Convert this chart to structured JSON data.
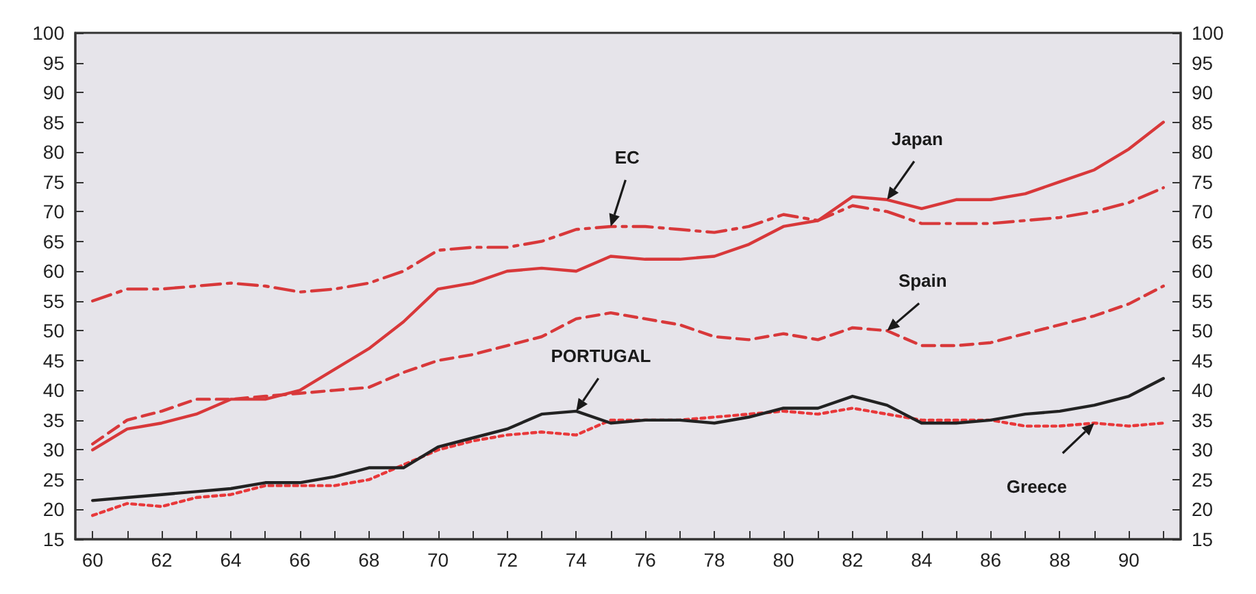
{
  "chart_data": {
    "type": "line",
    "x": [
      60,
      61,
      62,
      63,
      64,
      65,
      66,
      67,
      68,
      69,
      70,
      71,
      72,
      73,
      74,
      75,
      76,
      77,
      78,
      79,
      80,
      81,
      82,
      83,
      84,
      85,
      86,
      87,
      88,
      89,
      90,
      91
    ],
    "series": [
      {
        "name": "EC",
        "color": "#d8383a",
        "line_style": "dashdot",
        "values": [
          55,
          57,
          57,
          57.5,
          58,
          57.5,
          56.5,
          57,
          58,
          60,
          63.5,
          64,
          64,
          65,
          67,
          67.5,
          67.5,
          67,
          66.5,
          67.5,
          69.5,
          68.5,
          71,
          70,
          68,
          68,
          68,
          68.5,
          69,
          70,
          71.5,
          74
        ]
      },
      {
        "name": "Japan",
        "color": "#d8383a",
        "line_style": "solid",
        "values": [
          30,
          33.5,
          34.5,
          36,
          38.5,
          38.5,
          40,
          43.5,
          47,
          51.5,
          57,
          58,
          60,
          60.5,
          60,
          62.5,
          62,
          62,
          62.5,
          64.5,
          67.5,
          68.5,
          72.5,
          72,
          70.5,
          72,
          72,
          73,
          75,
          77,
          80.5,
          85
        ]
      },
      {
        "name": "Spain",
        "color": "#d8383a",
        "line_style": "dashed",
        "values": [
          31,
          35,
          36.5,
          38.5,
          38.5,
          39,
          39.5,
          40,
          40.5,
          43,
          45,
          46,
          47.5,
          49,
          52,
          53,
          52,
          51,
          49,
          48.5,
          49.5,
          48.5,
          50.5,
          50,
          47.5,
          47.5,
          48,
          49.5,
          51,
          52.5,
          54.5,
          57.5
        ]
      },
      {
        "name": "PORTUGAL",
        "color": "#222222",
        "line_style": "solid",
        "values": [
          21.5,
          22,
          22.5,
          23,
          23.5,
          24.5,
          24.5,
          25.5,
          27,
          27,
          30.5,
          32,
          33.5,
          36,
          36.5,
          34.5,
          35,
          35,
          34.5,
          35.5,
          37,
          37,
          39,
          37.5,
          34.5,
          34.5,
          35,
          36,
          36.5,
          37.5,
          39,
          42
        ]
      },
      {
        "name": "Greece",
        "color": "#e8383a",
        "line_style": "dotted",
        "values": [
          19,
          21,
          20.5,
          22,
          22.5,
          24,
          24,
          24,
          25,
          27.5,
          30,
          31.5,
          32.5,
          33,
          32.5,
          35,
          35,
          35,
          35.5,
          36,
          36.5,
          36,
          37,
          36,
          35,
          35,
          35,
          34,
          34,
          34.5,
          34,
          34.5
        ]
      }
    ],
    "xlim": [
      59.5,
      91.5
    ],
    "xticks": [
      60,
      {
        "value": 61,
        "label": null
      },
      62,
      {
        "value": 63,
        "label": null
      },
      64,
      {
        "value": 65,
        "label": null
      },
      66,
      {
        "value": 67,
        "label": null
      },
      68,
      {
        "value": 69,
        "label": null
      },
      70,
      {
        "value": 71,
        "label": null
      },
      72,
      {
        "value": 73,
        "label": null
      },
      74,
      {
        "value": 75,
        "label": null
      },
      76,
      {
        "value": 77,
        "label": null
      },
      78,
      {
        "value": 79,
        "label": null
      },
      80,
      {
        "value": 81,
        "label": null
      },
      82,
      {
        "value": 83,
        "label": null
      },
      84,
      {
        "value": 85,
        "label": null
      },
      86,
      {
        "value": 87,
        "label": null
      },
      88,
      {
        "value": 89,
        "label": null
      },
      90,
      {
        "value": 91,
        "label": null
      }
    ],
    "ylim": [
      15,
      100
    ],
    "yticks": [
      15,
      20,
      25,
      30,
      35,
      40,
      45,
      50,
      55,
      60,
      65,
      70,
      75,
      80,
      85,
      90,
      95,
      100
    ],
    "y2lim": [
      15,
      100
    ],
    "y2ticks": [
      15,
      20,
      25,
      30,
      35,
      40,
      45,
      50,
      55,
      60,
      65,
      70,
      75,
      80,
      85,
      90,
      95,
      100
    ],
    "marker": "none",
    "grid": false,
    "legend": false
  }
}
